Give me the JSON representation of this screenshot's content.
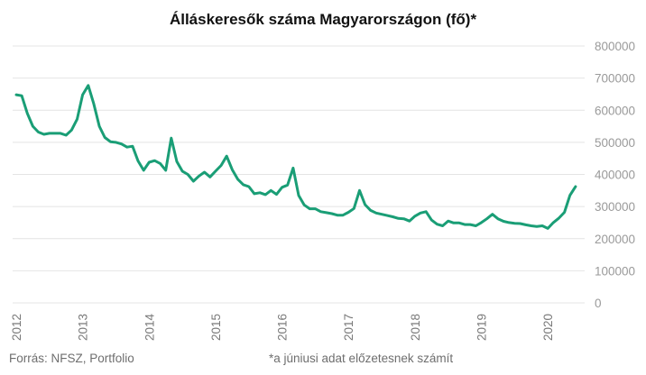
{
  "chart_data": {
    "type": "line",
    "title": "Álláskeresők száma Magyarországon (fő)*",
    "xlabel": "",
    "ylabel": "",
    "x_range": [
      2012.0,
      2020.5
    ],
    "ylim": [
      0,
      800000
    ],
    "y_ticks": [
      "800000",
      "700000",
      "600000",
      "500000",
      "400000",
      "300000",
      "200000",
      "100000",
      "0"
    ],
    "x_ticks": [
      "2012",
      "2013",
      "2014",
      "2015",
      "2016",
      "2017",
      "2018",
      "2019",
      "2020"
    ],
    "grid": true,
    "y_axis_position": "right",
    "color": "#1a9e76",
    "series": [
      {
        "x": [
          2012.0,
          2012.083,
          2012.167,
          2012.25,
          2012.333,
          2012.417,
          2012.5,
          2012.583,
          2012.667,
          2012.75,
          2012.833,
          2012.917,
          2013.0,
          2013.083,
          2013.167,
          2013.25,
          2013.333,
          2013.417,
          2013.5,
          2013.583,
          2013.667,
          2013.75,
          2013.833,
          2013.917,
          2014.0,
          2014.083,
          2014.167,
          2014.25,
          2014.333,
          2014.417,
          2014.5,
          2014.583,
          2014.667,
          2014.75,
          2014.833,
          2014.917,
          2015.0,
          2015.083,
          2015.167,
          2015.25,
          2015.333,
          2015.417,
          2015.5,
          2015.583,
          2015.667,
          2015.75,
          2015.833,
          2015.917,
          2016.0,
          2016.083,
          2016.167,
          2016.25,
          2016.333,
          2016.417,
          2016.5,
          2016.583,
          2016.667,
          2016.75,
          2016.833,
          2016.917,
          2017.0,
          2017.083,
          2017.167,
          2017.25,
          2017.333,
          2017.417,
          2017.5,
          2017.583,
          2017.667,
          2017.75,
          2017.833,
          2017.917,
          2018.0,
          2018.083,
          2018.167,
          2018.25,
          2018.333,
          2018.417,
          2018.5,
          2018.583,
          2018.667,
          2018.75,
          2018.833,
          2018.917,
          2019.0,
          2019.083,
          2019.167,
          2019.25,
          2019.333,
          2019.417,
          2019.5,
          2019.583,
          2019.667,
          2019.75,
          2019.833,
          2019.917,
          2020.0,
          2020.083,
          2020.167,
          2020.25,
          2020.333,
          2020.417
        ],
        "values": [
          648000,
          645000,
          590000,
          550000,
          532000,
          525000,
          528000,
          528000,
          528000,
          522000,
          538000,
          572000,
          648000,
          677000,
          620000,
          550000,
          515000,
          502000,
          500000,
          495000,
          485000,
          488000,
          442000,
          413000,
          438000,
          443000,
          434000,
          413000,
          513000,
          440000,
          410000,
          400000,
          379000,
          395000,
          407000,
          392000,
          410000,
          428000,
          457000,
          415000,
          385000,
          368000,
          362000,
          340000,
          343000,
          337000,
          350000,
          338000,
          360000,
          367000,
          420000,
          335000,
          305000,
          293000,
          293000,
          284000,
          281000,
          278000,
          273000,
          273000,
          282000,
          294000,
          350000,
          306000,
          288000,
          280000,
          276000,
          272000,
          268000,
          263000,
          262000,
          255000,
          270000,
          280000,
          284000,
          258000,
          245000,
          240000,
          255000,
          249000,
          249000,
          244000,
          244000,
          240000,
          250000,
          262000,
          276000,
          262000,
          254000,
          250000,
          248000,
          247000,
          243000,
          240000,
          238000,
          240000,
          232000,
          250000,
          264000,
          282000,
          335000,
          362000
        ]
      }
    ]
  },
  "footer": {
    "source": "Forrás: NFSZ, Portfolio",
    "note": "*a júniusi adat előzetesnek számít"
  }
}
